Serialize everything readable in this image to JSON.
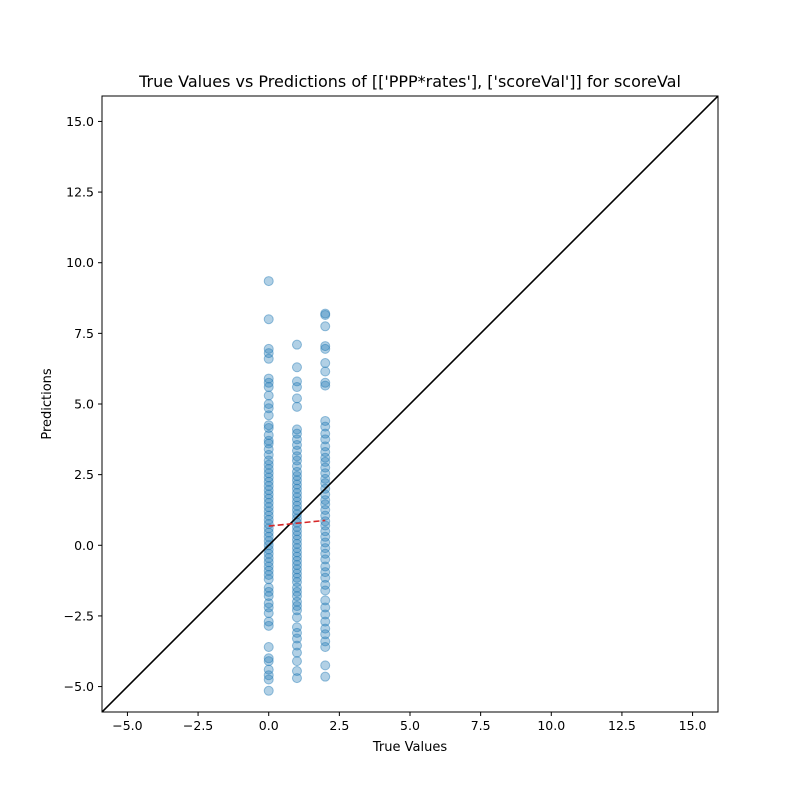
{
  "chart_data": {
    "type": "scatter",
    "title": "True Values vs Predictions of [['PPP*rates'], ['scoreVal']] for scoreVal",
    "xlabel": "True Values",
    "ylabel": "Predictions",
    "xlim": [
      -5.9,
      15.9
    ],
    "ylim": [
      -5.9,
      15.9
    ],
    "x_ticks": [
      -5.0,
      -2.5,
      0.0,
      2.5,
      5.0,
      7.5,
      10.0,
      12.5,
      15.0
    ],
    "y_ticks": [
      -5.0,
      -2.5,
      0.0,
      2.5,
      5.0,
      7.5,
      10.0,
      12.5,
      15.0
    ],
    "x_tick_labels": [
      "−5.0",
      "−2.5",
      "0.0",
      "2.5",
      "5.0",
      "7.5",
      "10.0",
      "12.5",
      "15.0"
    ],
    "y_tick_labels": [
      "−5.0",
      "−2.5",
      "0.0",
      "2.5",
      "5.0",
      "7.5",
      "10.0",
      "12.5",
      "15.0"
    ],
    "grid": false,
    "point_color": "#1f77b4",
    "identity_line_color": "#000000",
    "fit_line_color": "#d62728",
    "series": [
      {
        "x": 0,
        "y": [
          9.35,
          8.0,
          6.95,
          6.8,
          6.6,
          5.9,
          5.75,
          5.6,
          5.3,
          5.0,
          4.85,
          4.6,
          4.25,
          4.15,
          3.9,
          3.7,
          3.6,
          3.4,
          3.2,
          3.0,
          2.85,
          2.7,
          2.55,
          2.4,
          2.25,
          2.1,
          1.95,
          1.8,
          1.65,
          1.5,
          1.35,
          1.2,
          1.05,
          0.9,
          0.75,
          0.6,
          0.45,
          0.3,
          0.15,
          0.0,
          -0.15,
          -0.3,
          -0.45,
          -0.6,
          -0.75,
          -0.9,
          -1.05,
          -1.2,
          -1.5,
          -1.65,
          -1.8,
          -2.05,
          -2.2,
          -2.4,
          -2.7,
          -2.85,
          -3.6,
          -4.0,
          -4.1,
          -4.4,
          -4.6,
          -4.75,
          -5.15
        ]
      },
      {
        "x": 1,
        "y": [
          7.1,
          6.3,
          5.8,
          5.6,
          5.2,
          4.9,
          4.1,
          3.95,
          3.75,
          3.55,
          3.35,
          3.15,
          3.0,
          2.8,
          2.6,
          2.45,
          2.3,
          2.15,
          2.0,
          1.85,
          1.7,
          1.55,
          1.4,
          1.25,
          1.1,
          0.95,
          0.8,
          0.65,
          0.5,
          0.35,
          0.2,
          0.05,
          -0.1,
          -0.25,
          -0.4,
          -0.55,
          -0.7,
          -0.85,
          -1.0,
          -1.15,
          -1.3,
          -1.5,
          -1.65,
          -1.8,
          -2.0,
          -2.15,
          -2.3,
          -2.55,
          -2.9,
          -3.1,
          -3.3,
          -3.55,
          -3.8,
          -4.1,
          -4.45,
          -4.7
        ]
      },
      {
        "x": 2,
        "y": [
          8.2,
          8.15,
          7.75,
          7.05,
          6.95,
          6.45,
          6.15,
          5.75,
          5.65,
          4.4,
          4.2,
          3.95,
          3.75,
          3.5,
          3.3,
          3.1,
          2.95,
          2.75,
          2.55,
          2.35,
          2.2,
          2.0,
          1.8,
          1.6,
          1.45,
          1.25,
          1.05,
          0.85,
          0.7,
          0.5,
          0.3,
          0.1,
          -0.1,
          -0.3,
          -0.5,
          -0.75,
          -0.95,
          -1.15,
          -1.4,
          -1.6,
          -1.95,
          -2.2,
          -2.45,
          -2.7,
          -2.95,
          -3.15,
          -3.4,
          -3.6,
          -4.25,
          -4.65
        ]
      }
    ],
    "identity_line": {
      "from": [
        -5.9,
        -5.9
      ],
      "to": [
        15.9,
        15.9
      ]
    },
    "fit_line": {
      "from": [
        0,
        0.68
      ],
      "to": [
        2,
        0.88
      ]
    }
  }
}
